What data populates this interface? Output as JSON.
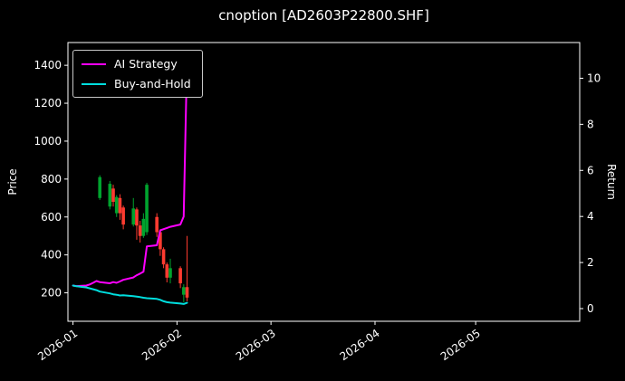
{
  "title": "cnoption [AD2603P22800.SHF]",
  "colors": {
    "background": "#000000",
    "foreground": "#ffffff",
    "ai_strategy": "#ff00ff",
    "buy_and_hold": "#00dede",
    "candle_up": "#00a32e",
    "candle_down": "#ff3b30"
  },
  "chart_data": {
    "type": "mixed",
    "subtypes": [
      "candlestick",
      "line"
    ],
    "title": "cnoption [AD2603P22800.SHF]",
    "left_axis": {
      "label": "Price",
      "ticks": [
        200,
        400,
        600,
        800,
        1000,
        1200,
        1400
      ],
      "ylim": [
        50,
        1520
      ]
    },
    "right_axis": {
      "label": "Return",
      "ticks": [
        0,
        2,
        4,
        6,
        8,
        10
      ],
      "ylim": [
        -0.55,
        11.55
      ]
    },
    "x_axis": {
      "tick_labels": [
        "2026-01",
        "2026-02",
        "2026-03",
        "2026-04",
        "2026-05"
      ],
      "tick_days": [
        0,
        31,
        59,
        90,
        120
      ],
      "xlim_days": [
        -1.5,
        151
      ],
      "label_rotation_deg": -35
    },
    "legend": [
      {
        "label": "AI Strategy",
        "color_key": "ai_strategy"
      },
      {
        "label": "Buy-and-Hold",
        "color_key": "buy_and_hold"
      }
    ],
    "grid": false,
    "candles": {
      "axis": "price",
      "days": [
        8,
        11,
        12,
        13,
        14,
        15,
        18,
        19,
        20,
        21,
        22,
        25,
        26,
        27,
        28,
        29,
        32,
        33,
        34
      ],
      "open": [
        700,
        655,
        750,
        620,
        700,
        650,
        560,
        640,
        555,
        500,
        520,
        600,
        520,
        430,
        350,
        280,
        330,
        190,
        230
      ],
      "high": [
        820,
        790,
        770,
        715,
        720,
        660,
        700,
        650,
        580,
        620,
        780,
        620,
        530,
        440,
        360,
        380,
        340,
        245,
        500
      ],
      "low": [
        690,
        640,
        655,
        600,
        585,
        535,
        550,
        480,
        465,
        490,
        505,
        495,
        395,
        330,
        255,
        250,
        225,
        150,
        155
      ],
      "close": [
        810,
        775,
        680,
        705,
        620,
        560,
        645,
        555,
        500,
        590,
        770,
        520,
        430,
        350,
        280,
        330,
        250,
        230,
        175
      ]
    },
    "series": [
      {
        "name": "AI Strategy",
        "axis": "return",
        "color_key": "ai_strategy",
        "days": [
          0,
          1,
          4,
          5,
          6,
          7,
          8,
          11,
          12,
          13,
          14,
          15,
          18,
          19,
          20,
          21,
          22,
          25,
          26,
          27,
          28,
          29,
          32,
          33,
          34
        ],
        "values": [
          1.0,
          0.98,
          1.0,
          1.05,
          1.12,
          1.2,
          1.15,
          1.1,
          1.15,
          1.12,
          1.18,
          1.25,
          1.35,
          1.45,
          1.52,
          1.6,
          2.7,
          2.75,
          3.4,
          3.45,
          3.5,
          3.55,
          3.65,
          4.0,
          10.9
        ]
      },
      {
        "name": "Buy-and-Hold",
        "axis": "return",
        "color_key": "buy_and_hold",
        "days": [
          0,
          1,
          4,
          5,
          6,
          7,
          8,
          11,
          12,
          13,
          14,
          15,
          18,
          19,
          20,
          21,
          22,
          25,
          26,
          27,
          28,
          29,
          32,
          33,
          34
        ],
        "values": [
          1.0,
          0.97,
          0.92,
          0.88,
          0.84,
          0.8,
          0.74,
          0.66,
          0.62,
          0.6,
          0.57,
          0.58,
          0.54,
          0.52,
          0.5,
          0.47,
          0.45,
          0.42,
          0.38,
          0.32,
          0.28,
          0.26,
          0.22,
          0.2,
          0.25
        ]
      }
    ]
  }
}
